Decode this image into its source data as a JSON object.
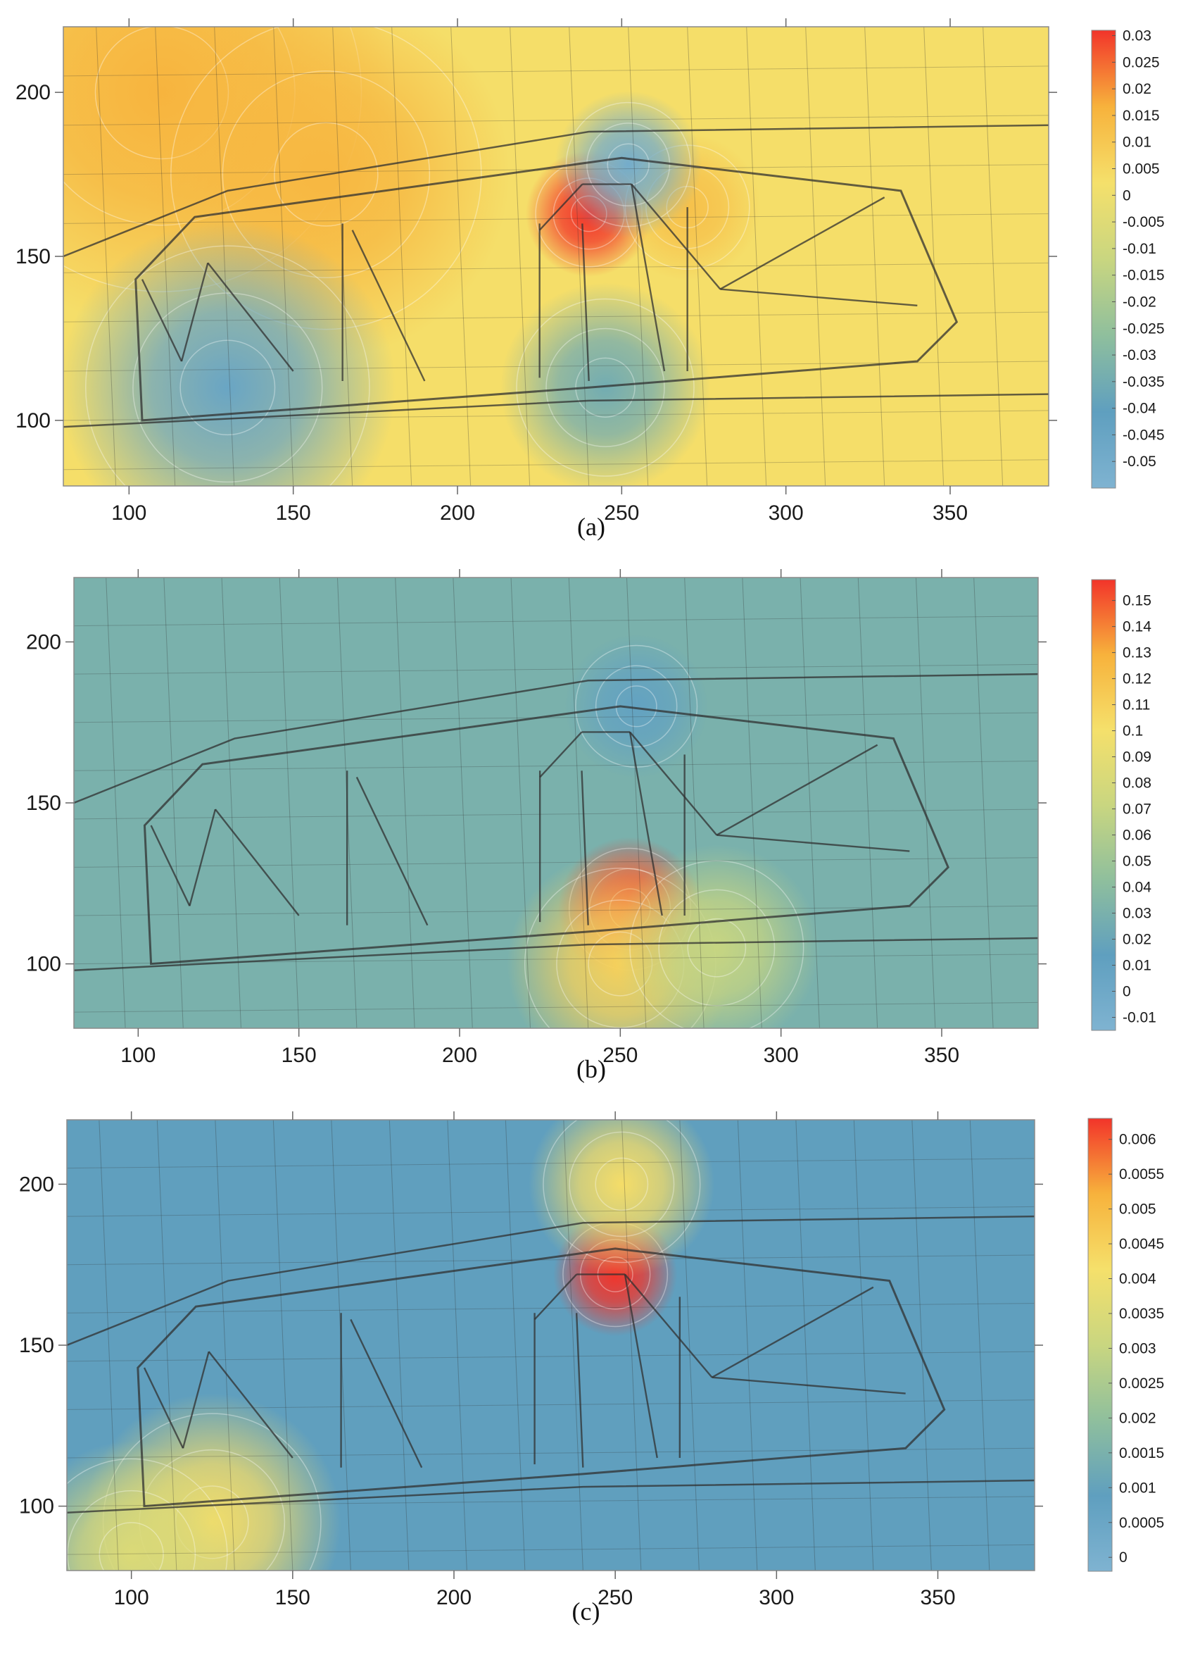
{
  "chart_data": [
    {
      "type": "heatmap",
      "panel_label": "(a)",
      "x_ticks": [
        100,
        150,
        200,
        250,
        300,
        350
      ],
      "y_ticks": [
        100,
        150,
        200
      ],
      "xlim": [
        80,
        380
      ],
      "ylim": [
        80,
        220
      ],
      "colorbar": {
        "min": -0.055,
        "max": 0.031,
        "tick_values": [
          0.03,
          0.025,
          0.02,
          0.015,
          0.01,
          0.005,
          0,
          -0.005,
          -0.01,
          -0.015,
          -0.02,
          -0.025,
          -0.03,
          -0.035,
          -0.04,
          -0.045,
          -0.05
        ],
        "tick_labels": [
          "0.03",
          "0.025",
          "0.02",
          "0.015",
          "0.01",
          "0.005",
          "0",
          "-0.005",
          "-0.01",
          "-0.015",
          "-0.02",
          "-0.025",
          "-0.03",
          "-0.035",
          "-0.04",
          "-0.045",
          "-0.05"
        ]
      },
      "background_value": 0.003,
      "field_centers": [
        {
          "x": 110,
          "y": 200,
          "value": 0.016,
          "spread": 45
        },
        {
          "x": 160,
          "y": 175,
          "value": 0.015,
          "spread": 35
        },
        {
          "x": 240,
          "y": 163,
          "value": 0.031,
          "spread": 12
        },
        {
          "x": 270,
          "y": 165,
          "value": 0.012,
          "spread": 14
        },
        {
          "x": 252,
          "y": 178,
          "value": -0.05,
          "spread": 14
        },
        {
          "x": 130,
          "y": 110,
          "value": -0.045,
          "spread": 32
        },
        {
          "x": 245,
          "y": 110,
          "value": -0.035,
          "spread": 20
        }
      ]
    },
    {
      "type": "heatmap",
      "panel_label": "(b)",
      "x_ticks": [
        100,
        150,
        200,
        250,
        300,
        350
      ],
      "y_ticks": [
        100,
        150,
        200
      ],
      "xlim": [
        80,
        380
      ],
      "ylim": [
        80,
        220
      ],
      "colorbar": {
        "min": -0.015,
        "max": 0.158,
        "tick_values": [
          0.15,
          0.14,
          0.13,
          0.12,
          0.11,
          0.1,
          0.09,
          0.08,
          0.07,
          0.06,
          0.05,
          0.04,
          0.03,
          0.02,
          0.01,
          0,
          -0.01
        ],
        "tick_labels": [
          "0.15",
          "0.14",
          "0.13",
          "0.12",
          "0.11",
          "0.1",
          "0.09",
          "0.08",
          "0.07",
          "0.06",
          "0.05",
          "0.04",
          "0.03",
          "0.02",
          "0.01",
          "0",
          "-0.01"
        ]
      },
      "background_value": 0.03,
      "field_centers": [
        {
          "x": 253,
          "y": 117,
          "value": 0.158,
          "spread": 14
        },
        {
          "x": 250,
          "y": 100,
          "value": 0.11,
          "spread": 22
        },
        {
          "x": 280,
          "y": 105,
          "value": 0.07,
          "spread": 20
        },
        {
          "x": 255,
          "y": 180,
          "value": 0.01,
          "spread": 14
        }
      ]
    },
    {
      "type": "heatmap",
      "panel_label": "(c)",
      "x_ticks": [
        100,
        150,
        200,
        250,
        300,
        350
      ],
      "y_ticks": [
        100,
        150,
        200
      ],
      "xlim": [
        80,
        380
      ],
      "ylim": [
        80,
        220
      ],
      "colorbar": {
        "min": -0.0002,
        "max": 0.0063,
        "tick_values": [
          0.006,
          0.0055,
          0.005,
          0.0045,
          0.004,
          0.0035,
          0.003,
          0.0025,
          0.002,
          0.0015,
          0.001,
          0.0005,
          0
        ],
        "tick_labels": [
          "0.006",
          "0.0055",
          "0.005",
          "0.0045",
          "0.004",
          "0.0035",
          "0.003",
          "0.0025",
          "0.002",
          "0.0015",
          "0.001",
          "0.0005",
          "0"
        ]
      },
      "background_value": 0.0009,
      "field_centers": [
        {
          "x": 250,
          "y": 172,
          "value": 0.0063,
          "spread": 12
        },
        {
          "x": 252,
          "y": 200,
          "value": 0.0042,
          "spread": 18
        },
        {
          "x": 125,
          "y": 95,
          "value": 0.0042,
          "spread": 25
        },
        {
          "x": 100,
          "y": 85,
          "value": 0.0035,
          "spread": 22
        }
      ]
    }
  ],
  "colors": {
    "scale_stops": [
      "#7fb3d1",
      "#5f9fbf",
      "#8fbf9d",
      "#c9d680",
      "#f5e06b",
      "#f7b23c",
      "#f2342a"
    ],
    "map_lines": "#303030",
    "contour": "#ffffff"
  }
}
